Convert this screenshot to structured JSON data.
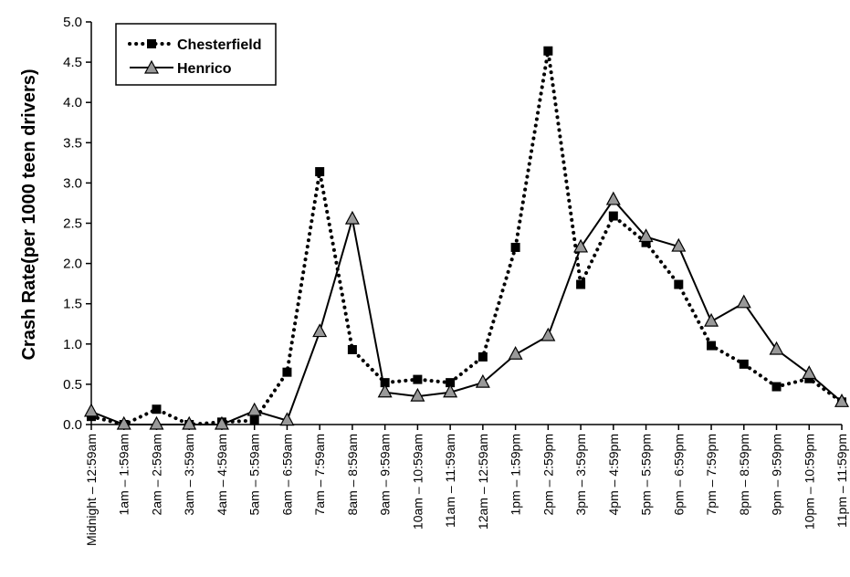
{
  "chart_data": {
    "type": "line",
    "title": "",
    "xlabel": "",
    "ylabel": "Crash Rate(per 1000 teen drivers)",
    "ylim": [
      0,
      5
    ],
    "yticks": [
      "0.0",
      "0.5",
      "1.0",
      "1.5",
      "2.0",
      "2.5",
      "3.0",
      "3.5",
      "4.0",
      "4.5",
      "5.0"
    ],
    "grid": false,
    "legend_position": "top-left",
    "categories": [
      "Midnight – 12:59am",
      "1am – 1:59am",
      "2am – 2:59am",
      "3am – 3:59am",
      "4am – 4:59am",
      "5am – 5:59am",
      "6am – 6:59am",
      "7am – 7:59am",
      "8am – 8:59am",
      "9am – 9:59am",
      "10am – 10:59am",
      "11am – 11:59am",
      "12am – 12:59am",
      "1pm – 1:59pm",
      "2pm – 2:59pm",
      "3pm – 3:59pm",
      "4pm – 4:59pm",
      "5pm – 5:59pm",
      "6pm – 6:59pm",
      "7pm – 7:59pm",
      "8pm – 8:59pm",
      "9pm – 9:59pm",
      "10pm – 10:59pm",
      "11pm – 11:59pm"
    ],
    "series": [
      {
        "name": "Chesterfield",
        "style": "dotted",
        "marker": "square",
        "color": "#000000",
        "values": [
          0.1,
          0.0,
          0.19,
          0.0,
          0.03,
          0.05,
          0.65,
          3.14,
          0.93,
          0.52,
          0.56,
          0.52,
          0.84,
          2.2,
          4.64,
          1.74,
          2.59,
          2.26,
          1.74,
          0.98,
          0.75,
          0.47,
          0.57,
          0.28
        ]
      },
      {
        "name": "Henrico",
        "style": "solid",
        "marker": "triangle",
        "color": "#000000",
        "marker_fill": "#999999",
        "values": [
          0.16,
          0.0,
          0.0,
          0.0,
          0.0,
          0.17,
          0.05,
          1.15,
          2.55,
          0.4,
          0.35,
          0.4,
          0.52,
          0.87,
          1.1,
          2.2,
          2.79,
          2.33,
          2.21,
          1.28,
          1.51,
          0.93,
          0.63,
          0.28
        ]
      }
    ]
  }
}
